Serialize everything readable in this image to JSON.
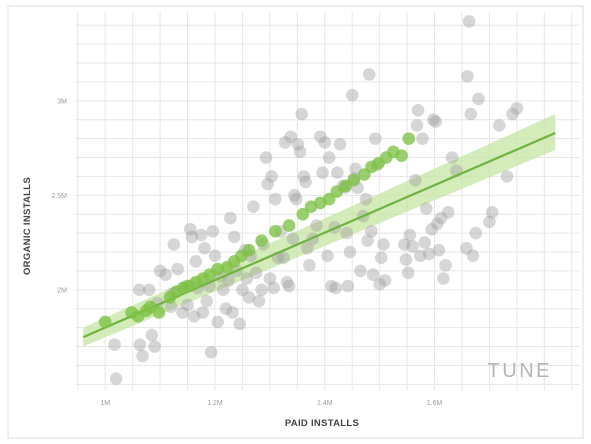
{
  "chart_data": {
    "type": "scatter",
    "xlabel": "PAID INSTALLS",
    "ylabel": "ORGANIC INSTALLS",
    "x_ticks": [
      {
        "value": 1000000,
        "label": "1M"
      },
      {
        "value": 1200000,
        "label": "1.2M"
      },
      {
        "value": 1400000,
        "label": "1.4M"
      },
      {
        "value": 1600000,
        "label": "1.6M"
      }
    ],
    "y_ticks": [
      {
        "value": 2000000,
        "label": "2M"
      },
      {
        "value": 2500000,
        "label": "2.5M"
      },
      {
        "value": 3000000,
        "label": "3M"
      }
    ],
    "xlim": [
      945000,
      1865000
    ],
    "ylim": [
      1470000,
      3470000
    ],
    "grid": true,
    "colors": {
      "grey_points": "#9e9e9e",
      "green_points": "#7cc142",
      "trend_line": "#6db33f",
      "confidence_band": "#c5e4a3",
      "frame": "#dcdcdc"
    },
    "logo": "TUNE",
    "series": [
      {
        "role": "observed",
        "points": [
          [
            1017000,
            1710000
          ],
          [
            1020000,
            1530000
          ],
          [
            1062000,
            2000000
          ],
          [
            1063000,
            1710000
          ],
          [
            1068000,
            1650000
          ],
          [
            1080000,
            2000000
          ],
          [
            1085000,
            1760000
          ],
          [
            1090000,
            1700000
          ],
          [
            1095000,
            1930000
          ],
          [
            1100000,
            2100000
          ],
          [
            1110000,
            2080000
          ],
          [
            1120000,
            1910000
          ],
          [
            1123000,
            1980000
          ],
          [
            1125000,
            2240000
          ],
          [
            1132000,
            2110000
          ],
          [
            1141000,
            1880000
          ],
          [
            1148000,
            2020000
          ],
          [
            1150000,
            1920000
          ],
          [
            1155000,
            2320000
          ],
          [
            1158000,
            2280000
          ],
          [
            1162000,
            1860000
          ],
          [
            1165000,
            2150000
          ],
          [
            1168000,
            2010000
          ],
          [
            1175000,
            2290000
          ],
          [
            1178000,
            1880000
          ],
          [
            1181000,
            2220000
          ],
          [
            1185000,
            1940000
          ],
          [
            1190000,
            2020000
          ],
          [
            1193000,
            1670000
          ],
          [
            1196000,
            2310000
          ],
          [
            1200000,
            2180000
          ],
          [
            1205000,
            1830000
          ],
          [
            1210000,
            2070000
          ],
          [
            1215000,
            2000000
          ],
          [
            1220000,
            1900000
          ],
          [
            1225000,
            2050000
          ],
          [
            1228000,
            2380000
          ],
          [
            1232000,
            1880000
          ],
          [
            1235000,
            2280000
          ],
          [
            1240000,
            2100000
          ],
          [
            1245000,
            1820000
          ],
          [
            1250000,
            2000000
          ],
          [
            1255000,
            2210000
          ],
          [
            1258000,
            2060000
          ],
          [
            1262000,
            1960000
          ],
          [
            1265000,
            2180000
          ],
          [
            1270000,
            2440000
          ],
          [
            1275000,
            2090000
          ],
          [
            1280000,
            1940000
          ],
          [
            1285000,
            2000000
          ],
          [
            1288000,
            2240000
          ],
          [
            1293000,
            2700000
          ],
          [
            1296000,
            2560000
          ],
          [
            1300000,
            2060000
          ],
          [
            1303000,
            2600000
          ],
          [
            1307000,
            2010000
          ],
          [
            1310000,
            2480000
          ],
          [
            1315000,
            2170000
          ],
          [
            1320000,
            2310000
          ],
          [
            1325000,
            2170000
          ],
          [
            1328000,
            2780000
          ],
          [
            1331000,
            2040000
          ],
          [
            1335000,
            2020000
          ],
          [
            1338000,
            2810000
          ],
          [
            1342000,
            2270000
          ],
          [
            1345000,
            2500000
          ],
          [
            1348000,
            2480000
          ],
          [
            1351000,
            2770000
          ],
          [
            1355000,
            2730000
          ],
          [
            1358000,
            2930000
          ],
          [
            1362000,
            2600000
          ],
          [
            1365000,
            2570000
          ],
          [
            1368000,
            2220000
          ],
          [
            1372000,
            2130000
          ],
          [
            1378000,
            2270000
          ],
          [
            1385000,
            2340000
          ],
          [
            1392000,
            2810000
          ],
          [
            1396000,
            2620000
          ],
          [
            1400000,
            2780000
          ],
          [
            1405000,
            2180000
          ],
          [
            1408000,
            2700000
          ],
          [
            1412000,
            2020000
          ],
          [
            1418000,
            2330000
          ],
          [
            1420000,
            2010000
          ],
          [
            1423000,
            2620000
          ],
          [
            1428000,
            2770000
          ],
          [
            1433000,
            2550000
          ],
          [
            1437000,
            2540000
          ],
          [
            1440000,
            2300000
          ],
          [
            1442000,
            2020000
          ],
          [
            1446000,
            2200000
          ],
          [
            1450000,
            3030000
          ],
          [
            1453000,
            2590000
          ],
          [
            1456000,
            2640000
          ],
          [
            1460000,
            2540000
          ],
          [
            1465000,
            2100000
          ],
          [
            1470000,
            2390000
          ],
          [
            1475000,
            2480000
          ],
          [
            1478000,
            2260000
          ],
          [
            1481000,
            3140000
          ],
          [
            1485000,
            2310000
          ],
          [
            1488000,
            2080000
          ],
          [
            1492000,
            2800000
          ],
          [
            1495000,
            2660000
          ],
          [
            1500000,
            2030000
          ],
          [
            1503000,
            2170000
          ],
          [
            1507000,
            2240000
          ],
          [
            1510000,
            2050000
          ],
          [
            1545000,
            2240000
          ],
          [
            1548000,
            2160000
          ],
          [
            1552000,
            2090000
          ],
          [
            1555000,
            2290000
          ],
          [
            1560000,
            2230000
          ],
          [
            1565000,
            2580000
          ],
          [
            1568000,
            2870000
          ],
          [
            1570000,
            2950000
          ],
          [
            1574000,
            2180000
          ],
          [
            1578000,
            2800000
          ],
          [
            1582000,
            2250000
          ],
          [
            1585000,
            2430000
          ],
          [
            1590000,
            2190000
          ],
          [
            1595000,
            2320000
          ],
          [
            1598000,
            2900000
          ],
          [
            1602000,
            2890000
          ],
          [
            1605000,
            2350000
          ],
          [
            1608000,
            2210000
          ],
          [
            1612000,
            2380000
          ],
          [
            1616000,
            2060000
          ],
          [
            1620000,
            2130000
          ],
          [
            1625000,
            2410000
          ],
          [
            1632000,
            2700000
          ],
          [
            1640000,
            2630000
          ],
          [
            1658000,
            2220000
          ],
          [
            1660000,
            3130000
          ],
          [
            1663000,
            3420000
          ],
          [
            1666000,
            2930000
          ],
          [
            1670000,
            2180000
          ],
          [
            1675000,
            2300000
          ],
          [
            1680000,
            3010000
          ],
          [
            1700000,
            2360000
          ],
          [
            1705000,
            2410000
          ],
          [
            1718000,
            2870000
          ],
          [
            1732000,
            2600000
          ],
          [
            1742000,
            2930000
          ],
          [
            1750000,
            2960000
          ]
        ]
      },
      {
        "role": "highlighted",
        "points": [
          [
            1000000,
            1830000
          ],
          [
            1048000,
            1880000
          ],
          [
            1060000,
            1860000
          ],
          [
            1075000,
            1890000
          ],
          [
            1082000,
            1910000
          ],
          [
            1098000,
            1880000
          ],
          [
            1118000,
            1960000
          ],
          [
            1130000,
            1990000
          ],
          [
            1142000,
            2010000
          ],
          [
            1152000,
            2020000
          ],
          [
            1165000,
            2040000
          ],
          [
            1178000,
            2060000
          ],
          [
            1190000,
            2080000
          ],
          [
            1205000,
            2110000
          ],
          [
            1222000,
            2120000
          ],
          [
            1235000,
            2150000
          ],
          [
            1248000,
            2180000
          ],
          [
            1262000,
            2210000
          ],
          [
            1285000,
            2260000
          ],
          [
            1310000,
            2310000
          ],
          [
            1335000,
            2340000
          ],
          [
            1360000,
            2400000
          ],
          [
            1375000,
            2440000
          ],
          [
            1392000,
            2460000
          ],
          [
            1408000,
            2480000
          ],
          [
            1422000,
            2520000
          ],
          [
            1438000,
            2550000
          ],
          [
            1453000,
            2580000
          ],
          [
            1472000,
            2610000
          ],
          [
            1485000,
            2650000
          ],
          [
            1498000,
            2670000
          ],
          [
            1512000,
            2700000
          ],
          [
            1525000,
            2730000
          ],
          [
            1540000,
            2710000
          ],
          [
            1553000,
            2800000
          ]
        ]
      }
    ],
    "trend": {
      "from": [
        960000,
        1750000
      ],
      "to": [
        1820000,
        2830000
      ],
      "band_start": [
        1700000,
        1800000
      ],
      "band_end": [
        2740000,
        2930000
      ]
    }
  }
}
